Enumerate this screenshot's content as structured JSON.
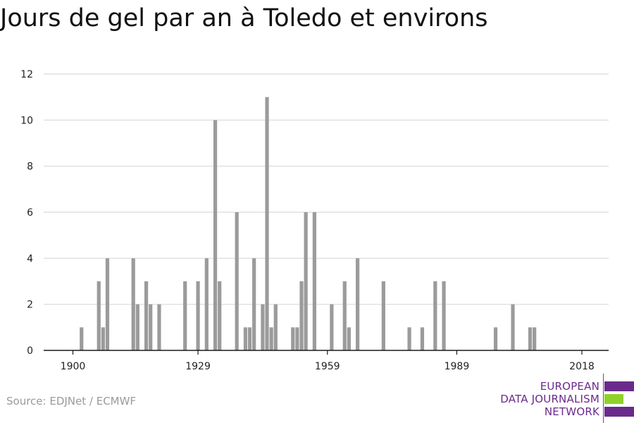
{
  "header": {
    "title": "Jours de gel par an à Toledo et environs"
  },
  "footer": {
    "source": "Source: EDJNet / ECMWF"
  },
  "logo": {
    "lines": [
      "EUROPEAN",
      "DATA JOURNALISM",
      "NETWORK"
    ],
    "colors": {
      "purple": "#6a2a8c",
      "green": "#8fd12a"
    }
  },
  "colors": {
    "bar": "#9b9b9b",
    "grid": "#d9d9d9",
    "axis": "#1a1a1a"
  },
  "chart_data": {
    "type": "bar",
    "title": "Jours de gel par an à Toledo et environs",
    "xlabel": "",
    "ylabel": "",
    "xlim": [
      1894,
      2022
    ],
    "ylim": [
      0,
      12
    ],
    "x_ticks": [
      1900,
      1929,
      1959,
      1989,
      2018
    ],
    "y_ticks": [
      0,
      2,
      4,
      6,
      8,
      10,
      12
    ],
    "grid": true,
    "x": [
      1902,
      1906,
      1907,
      1908,
      1914,
      1915,
      1917,
      1918,
      1920,
      1926,
      1929,
      1931,
      1933,
      1934,
      1938,
      1940,
      1941,
      1942,
      1944,
      1945,
      1946,
      1947,
      1951,
      1952,
      1953,
      1954,
      1956,
      1960,
      1963,
      1964,
      1966,
      1972,
      1978,
      1981,
      1984,
      1986,
      1998,
      2002,
      2006,
      2007
    ],
    "values": [
      1,
      3,
      1,
      4,
      4,
      2,
      3,
      2,
      2,
      3,
      3,
      4,
      10,
      3,
      6,
      1,
      1,
      4,
      2,
      11,
      1,
      2,
      1,
      1,
      3,
      6,
      6,
      2,
      3,
      1,
      4,
      3,
      1,
      1,
      3,
      3,
      1,
      2,
      1,
      1
    ]
  }
}
